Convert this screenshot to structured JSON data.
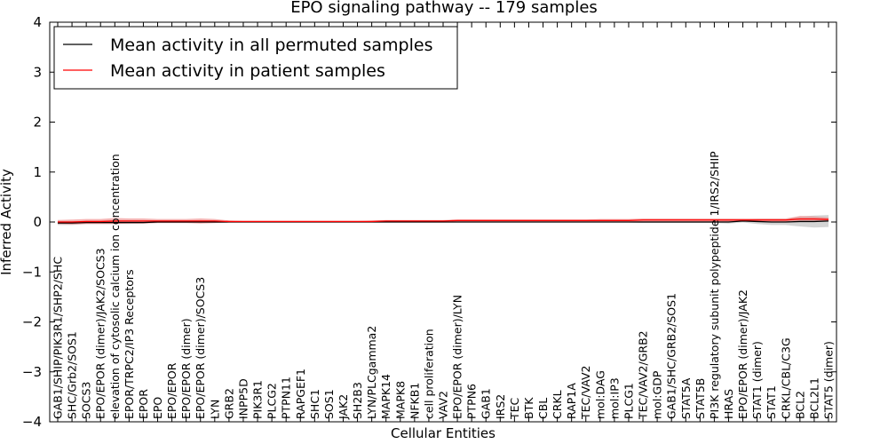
{
  "chart_data": {
    "type": "line",
    "title": "EPO signaling pathway -- 179 samples",
    "xlabel": "Cellular Entities",
    "ylabel": "Inferred Activity",
    "ylim": [
      -4,
      4
    ],
    "yticks": [
      "−4",
      "−3",
      "−2",
      "−1",
      "0",
      "1",
      "2",
      "3",
      "4"
    ],
    "legend_position": "top-left",
    "grid": false,
    "categories": [
      "GAB1/SHIP/PIK3R1/SHP2/SHC",
      "SHC/Grb2/SOS1",
      "SOCS3",
      "EPO/EPOR (dimer)/JAK2/SOCS3",
      "elevation of cytosolic calcium ion concentration",
      "EPOR/TRPC2/IP3 Receptors",
      "EPOR",
      "EPO",
      "EPO/EPOR",
      "EPO/EPOR (dimer)",
      "EPO/EPOR (dimer)/SOCS3",
      "LYN",
      "GRB2",
      "INPP5D",
      "PIK3R1",
      "PLCG2",
      "PTPN11",
      "RAPGEF1",
      "SHC1",
      "SOS1",
      "JAK2",
      "SH2B3",
      "LYN/PLCgamma2",
      "MAPK14",
      "MAPK8",
      "NFKB1",
      "cell proliferation",
      "VAV2",
      "EPO/EPOR (dimer)/LYN",
      "PTPN6",
      "GAB1",
      "IRS2",
      "TEC",
      "BTK",
      "CBL",
      "CRKL",
      "RAP1A",
      "TEC/VAV2",
      "mol:DAG",
      "mol:IP3",
      "PLCG1",
      "TEC/VAV2/GRB2",
      "mol:GDP",
      "GAB1/SHC/GRB2/SOS1",
      "STAT5A",
      "STAT5B",
      "PI3K regulatory subunit polypeptide 1/IRS2/SHIP",
      "HRAS",
      "EPO/EPOR (dimer)/JAK2",
      "STAT1 (dimer)",
      "STAT1",
      "CRKL/CBL/C3G",
      "BCL2",
      "BCL2L1",
      "STAT5 (dimer)"
    ],
    "series": [
      {
        "name": "Mean activity in all permuted samples",
        "color": "#000000",
        "band_color": "#aaaaaa",
        "values": [
          -0.02,
          -0.02,
          -0.01,
          -0.01,
          -0.01,
          -0.01,
          -0.01,
          0.0,
          0.0,
          0.0,
          0.0,
          0.0,
          0.0,
          0.0,
          0.0,
          0.0,
          0.0,
          0.0,
          0.0,
          0.0,
          0.0,
          0.0,
          0.0,
          0.0,
          0.0,
          0.0,
          0.0,
          0.0,
          0.0,
          0.0,
          0.0,
          0.0,
          0.0,
          0.0,
          0.0,
          0.0,
          0.0,
          0.0,
          0.0,
          0.0,
          0.0,
          0.0,
          0.0,
          0.0,
          0.0,
          0.0,
          0.0,
          0.0,
          0.02,
          0.01,
          0.0,
          0.0,
          0.01,
          0.01,
          0.02
        ],
        "band": [
          0.04,
          0.04,
          0.03,
          0.03,
          0.03,
          0.03,
          0.02,
          0.02,
          0.02,
          0.02,
          0.02,
          0.02,
          0.01,
          0.01,
          0.01,
          0.01,
          0.01,
          0.01,
          0.01,
          0.01,
          0.01,
          0.01,
          0.01,
          0.01,
          0.01,
          0.01,
          0.01,
          0.01,
          0.01,
          0.01,
          0.01,
          0.01,
          0.01,
          0.01,
          0.01,
          0.01,
          0.01,
          0.01,
          0.01,
          0.01,
          0.01,
          0.02,
          0.02,
          0.02,
          0.02,
          0.02,
          0.02,
          0.03,
          0.03,
          0.05,
          0.06,
          0.06,
          0.1,
          0.12,
          0.12
        ]
      },
      {
        "name": "Mean activity in patient samples",
        "color": "#ff0000",
        "band_color": "#f08080",
        "values": [
          0.0,
          0.0,
          0.01,
          0.01,
          0.02,
          0.02,
          0.02,
          0.02,
          0.02,
          0.02,
          0.02,
          0.02,
          0.01,
          0.01,
          0.01,
          0.01,
          0.01,
          0.01,
          0.01,
          0.01,
          0.01,
          0.01,
          0.01,
          0.02,
          0.02,
          0.02,
          0.02,
          0.02,
          0.03,
          0.03,
          0.03,
          0.03,
          0.03,
          0.03,
          0.03,
          0.03,
          0.03,
          0.03,
          0.03,
          0.03,
          0.03,
          0.04,
          0.04,
          0.04,
          0.04,
          0.04,
          0.04,
          0.04,
          0.04,
          0.04,
          0.04,
          0.04,
          0.06,
          0.06,
          0.05
        ],
        "band": [
          0.04,
          0.05,
          0.05,
          0.05,
          0.06,
          0.05,
          0.05,
          0.04,
          0.04,
          0.04,
          0.05,
          0.04,
          0.02,
          0.01,
          0.01,
          0.01,
          0.01,
          0.01,
          0.01,
          0.01,
          0.01,
          0.01,
          0.02,
          0.02,
          0.02,
          0.02,
          0.02,
          0.02,
          0.02,
          0.02,
          0.02,
          0.02,
          0.02,
          0.02,
          0.02,
          0.02,
          0.02,
          0.02,
          0.03,
          0.03,
          0.03,
          0.03,
          0.03,
          0.03,
          0.03,
          0.03,
          0.03,
          0.03,
          0.03,
          0.03,
          0.03,
          0.03,
          0.06,
          0.05,
          0.04
        ]
      }
    ]
  }
}
